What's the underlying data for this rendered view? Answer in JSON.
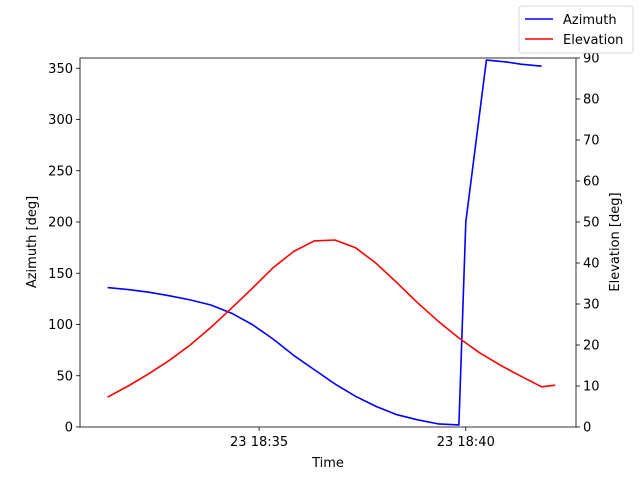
{
  "chart_data": {
    "type": "line",
    "xlabel": "Time",
    "ylabel_left": "Azimuth [deg]",
    "ylabel_right": "Elevation [deg]",
    "xlim": [
      "18:30:40",
      "18:42:40"
    ],
    "ylim_left": [
      0,
      360
    ],
    "ylim_right": [
      0,
      90
    ],
    "x_ticks": [
      {
        "time": "18:35:00",
        "label": "23 18:35"
      },
      {
        "time": "18:40:00",
        "label": "23 18:40"
      }
    ],
    "y_ticks_left": [
      0,
      50,
      100,
      150,
      200,
      250,
      300,
      350
    ],
    "y_ticks_right": [
      0,
      10,
      20,
      30,
      40,
      50,
      60,
      70,
      80,
      90
    ],
    "legend_position": "top-right",
    "series": [
      {
        "name": "Azimuth",
        "axis": "left",
        "color": "#0000ff",
        "x": [
          "18:31:20",
          "18:31:50",
          "18:32:20",
          "18:32:50",
          "18:33:20",
          "18:33:50",
          "18:34:20",
          "18:34:50",
          "18:35:20",
          "18:35:50",
          "18:36:20",
          "18:36:50",
          "18:37:20",
          "18:37:50",
          "18:38:20",
          "18:38:50",
          "18:39:20",
          "18:39:50",
          "18:40:00",
          "18:40:30",
          "18:41:00",
          "18:41:20",
          "18:41:50"
        ],
        "values": [
          136,
          134,
          131.5,
          128,
          124,
          119,
          111,
          100,
          86,
          70,
          56,
          42,
          30,
          20,
          12,
          7,
          3,
          2,
          200,
          358,
          356,
          354,
          352
        ]
      },
      {
        "name": "Elevation",
        "axis": "right",
        "color": "#ff0000",
        "x": [
          "18:31:20",
          "18:31:50",
          "18:32:20",
          "18:32:50",
          "18:33:20",
          "18:33:50",
          "18:34:20",
          "18:34:50",
          "18:35:20",
          "18:35:50",
          "18:36:20",
          "18:36:50",
          "18:37:20",
          "18:37:50",
          "18:38:20",
          "18:38:50",
          "18:39:20",
          "18:39:50",
          "18:40:20",
          "18:40:50",
          "18:41:20",
          "18:41:50",
          "18:42:10"
        ],
        "values": [
          7.3,
          10,
          13,
          16.3,
          20,
          24.3,
          29,
          33.8,
          38.8,
          42.8,
          45.4,
          45.6,
          43.7,
          39.9,
          35.2,
          30.3,
          25.8,
          21.7,
          18.1,
          15.1,
          12.4,
          9.8,
          10.2
        ]
      }
    ]
  }
}
